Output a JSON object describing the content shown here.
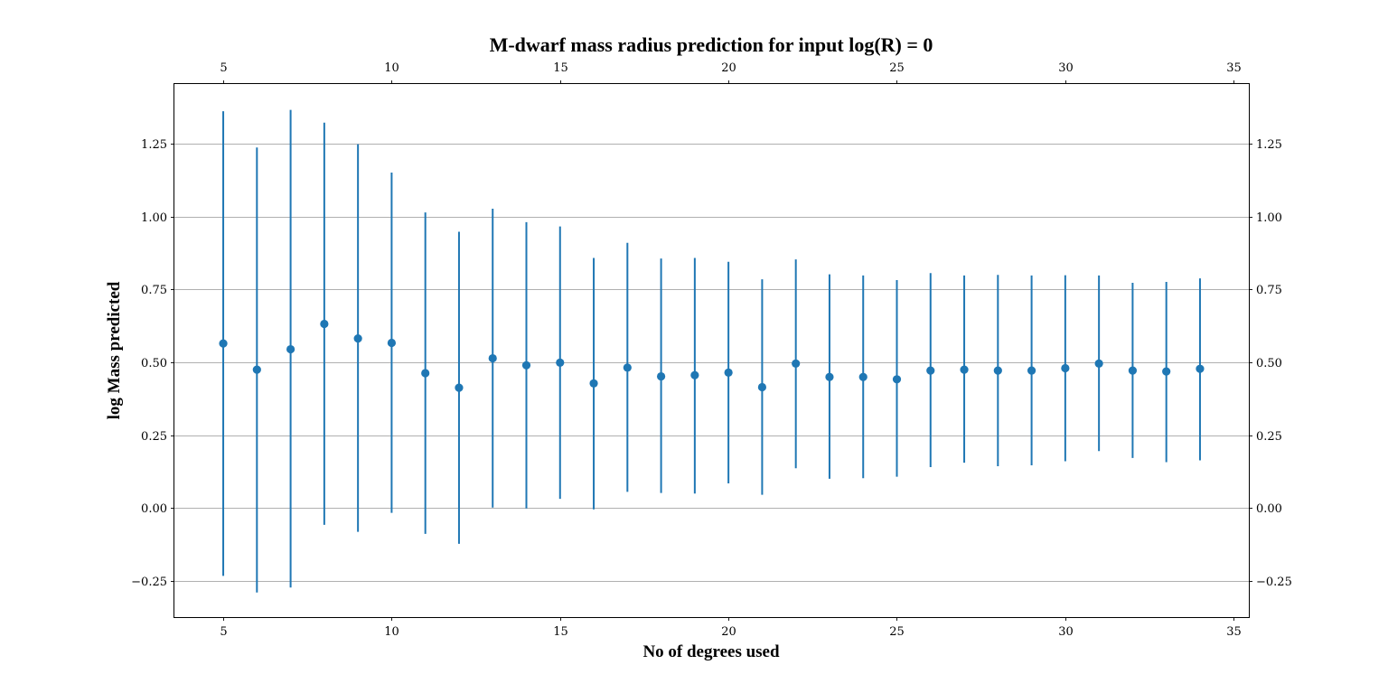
{
  "chart_data": {
    "type": "scatter",
    "title": "M-dwarf mass radius prediction for input log(R) = 0",
    "xlabel": "No of degrees used",
    "ylabel": "log Mass predicted",
    "xlim": [
      3.55,
      35.45
    ],
    "ylim": [
      -0.3735,
      1.4545
    ],
    "xticks": [
      5,
      10,
      15,
      20,
      25,
      30,
      35
    ],
    "yticks": [
      -0.25,
      0.0,
      0.25,
      0.5,
      0.75,
      1.0,
      1.25
    ],
    "ytick_labels": [
      "−0.25",
      "0.00",
      "0.25",
      "0.50",
      "0.75",
      "1.00",
      "1.25"
    ],
    "grid": "horizontal",
    "secondary_axes": "top and right mirror the bottom and left ticks",
    "series_color": "#1f77b4",
    "x": [
      5,
      6,
      7,
      8,
      9,
      10,
      11,
      12,
      13,
      14,
      15,
      16,
      17,
      18,
      19,
      20,
      21,
      22,
      23,
      24,
      25,
      26,
      27,
      28,
      29,
      30,
      31,
      32,
      33,
      34
    ],
    "y": [
      0.565,
      0.475,
      0.545,
      0.632,
      0.582,
      0.567,
      0.463,
      0.413,
      0.514,
      0.49,
      0.499,
      0.428,
      0.482,
      0.452,
      0.456,
      0.465,
      0.415,
      0.496,
      0.45,
      0.45,
      0.442,
      0.472,
      0.475,
      0.472,
      0.472,
      0.48,
      0.496,
      0.472,
      0.469,
      0.478
    ],
    "y_upper": [
      1.361,
      1.237,
      1.366,
      1.322,
      1.248,
      1.151,
      1.014,
      0.948,
      1.027,
      0.981,
      0.966,
      0.858,
      0.91,
      0.856,
      0.858,
      0.845,
      0.785,
      0.853,
      0.802,
      0.798,
      0.782,
      0.806,
      0.798,
      0.8,
      0.798,
      0.799,
      0.798,
      0.773,
      0.776,
      0.788
    ],
    "y_lower": [
      -0.232,
      -0.289,
      -0.272,
      -0.057,
      -0.081,
      -0.016,
      -0.088,
      -0.122,
      0.002,
      -0.001,
      0.032,
      -0.004,
      0.056,
      0.052,
      0.05,
      0.085,
      0.046,
      0.137,
      0.101,
      0.103,
      0.108,
      0.141,
      0.156,
      0.144,
      0.147,
      0.161,
      0.196,
      0.172,
      0.158,
      0.164
    ]
  }
}
